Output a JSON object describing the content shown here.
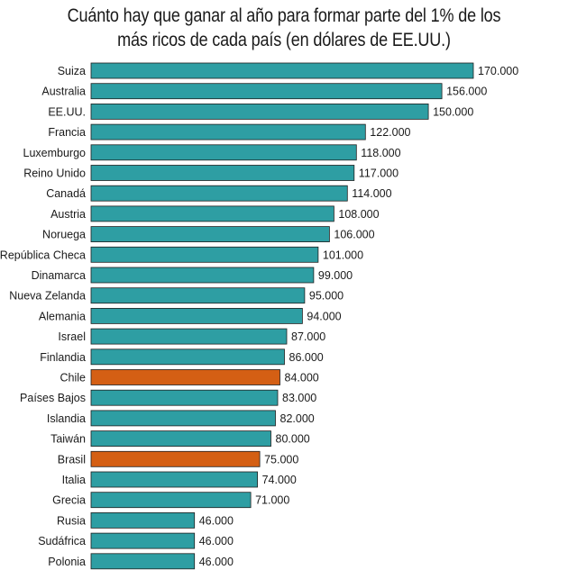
{
  "chart_data": {
    "type": "bar",
    "orientation": "horizontal",
    "title_line1": "Cuánto hay que ganar al año para formar parte del 1% de los",
    "title_line2": "más ricos de cada país (en dólares de EE.UU.)",
    "categories": [
      "Suiza",
      "Australia",
      "EE.UU.",
      "Francia",
      "Luxemburgo",
      "Reino Unido",
      "Canadá",
      "Austria",
      "Noruega",
      "República Checa",
      "Dinamarca",
      "Nueva Zelanda",
      "Alemania",
      "Israel",
      "Finlandia",
      "Chile",
      "Países Bajos",
      "Islandia",
      "Taiwán",
      "Brasil",
      "Italia",
      "Grecia",
      "Rusia",
      "Sudáfrica",
      "Polonia"
    ],
    "values": [
      170000,
      156000,
      150000,
      122000,
      118000,
      117000,
      114000,
      108000,
      106000,
      101000,
      99000,
      95000,
      94000,
      87000,
      86000,
      84000,
      83000,
      82000,
      80000,
      75000,
      74000,
      71000,
      46000,
      46000,
      46000
    ],
    "value_labels": [
      "170.000",
      "156.000",
      "150.000",
      "122.000",
      "118.000",
      "117.000",
      "114.000",
      "108.000",
      "106.000",
      "101.000",
      "99.000",
      "95.000",
      "94.000",
      "87.000",
      "86.000",
      "84.000",
      "83.000",
      "82.000",
      "80.000",
      "75.000",
      "74.000",
      "71.000",
      "46.000",
      "46.000",
      "46.000"
    ],
    "highlighted": [
      "Chile",
      "Brasil"
    ],
    "colors": {
      "default": "#2e9ea3",
      "highlight": "#d45f14"
    },
    "xlim": [
      0,
      170000
    ],
    "grid": false,
    "legend": "none"
  }
}
